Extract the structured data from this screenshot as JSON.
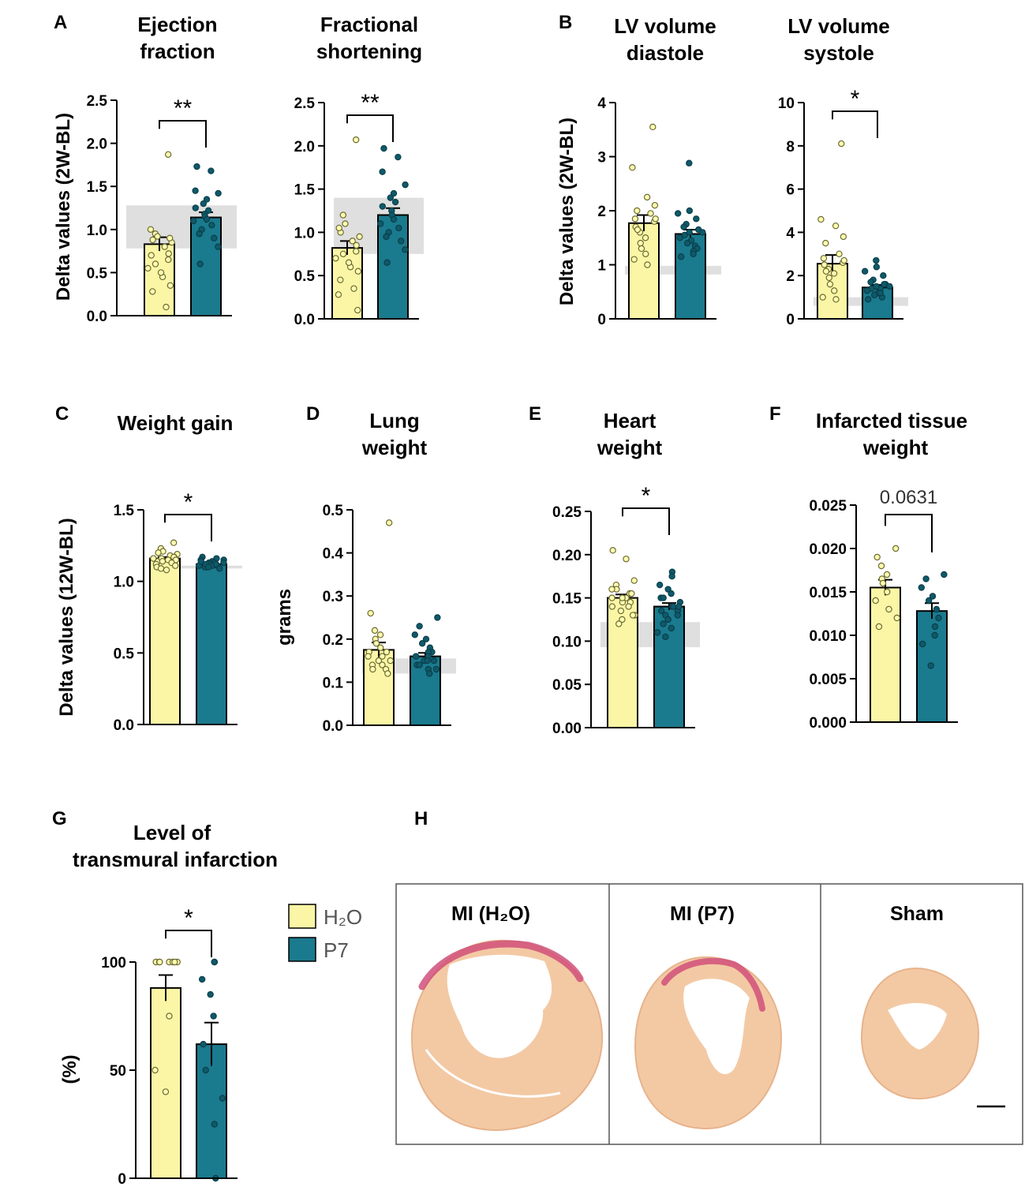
{
  "colors": {
    "h2o": "#fbf6a6",
    "p7": "#1a7a8e",
    "band": "#d9d9d9",
    "h2o_dot": "#ffffb0",
    "p7_dot": "#0e5a6a"
  },
  "legend": [
    {
      "key": "h2o",
      "label": "H₂O"
    },
    {
      "key": "p7",
      "label": "P7"
    }
  ],
  "histology": {
    "label": "H",
    "panels": [
      {
        "title": "MI (H₂O)"
      },
      {
        "title": "MI (P7)"
      },
      {
        "title": "Sham"
      }
    ]
  },
  "chart_data": [
    {
      "id": "ef",
      "type": "bar",
      "panel_label": "A",
      "title": [
        "Ejection",
        "fraction"
      ],
      "ylabel": "Delta values (2W-BL)",
      "ylim": [
        0,
        2.5
      ],
      "ticks": [
        "0.0",
        "0.5",
        "1.0",
        "1.5",
        "2.0",
        "2.5"
      ],
      "categories": [
        "H2O",
        "P7"
      ],
      "values": [
        0.83,
        1.14
      ],
      "sem": [
        0.08,
        0.06
      ],
      "band": [
        0.78,
        1.28
      ],
      "significance": "**",
      "points": [
        [
          1.87,
          0.95,
          0.92,
          0.88,
          0.85,
          0.8,
          0.72,
          0.65,
          0.55,
          0.45,
          0.35,
          0.28,
          0.1,
          1.0,
          0.9,
          0.7,
          0.6,
          0.5
        ],
        [
          1.73,
          1.68,
          1.45,
          1.42,
          1.35,
          1.3,
          1.22,
          1.18,
          1.15,
          1.1,
          1.05,
          1.0,
          0.95,
          0.9,
          0.8,
          0.6,
          1.25,
          1.12
        ]
      ]
    },
    {
      "id": "fs",
      "type": "bar",
      "panel_label": "",
      "title": [
        "Fractional",
        "shortening"
      ],
      "ylabel": "",
      "ylim": [
        0,
        2.5
      ],
      "ticks": [
        "0.0",
        "0.5",
        "1.0",
        "1.5",
        "2.0",
        "2.5"
      ],
      "categories": [
        "H2O",
        "P7"
      ],
      "values": [
        0.82,
        1.2
      ],
      "sem": [
        0.08,
        0.08
      ],
      "band": [
        0.75,
        1.4
      ],
      "significance": "**",
      "points": [
        [
          2.07,
          1.2,
          1.1,
          1.0,
          0.95,
          0.9,
          0.85,
          0.78,
          0.7,
          0.6,
          0.55,
          0.45,
          0.35,
          0.28,
          0.1,
          1.05,
          0.75,
          0.65
        ],
        [
          1.97,
          1.87,
          1.7,
          1.55,
          1.45,
          1.4,
          1.35,
          1.25,
          1.2,
          1.1,
          1.05,
          1.0,
          0.95,
          0.9,
          0.8,
          0.65,
          1.3,
          1.15
        ]
      ]
    },
    {
      "id": "lvd",
      "type": "bar",
      "panel_label": "B",
      "title": [
        "LV volume",
        "diastole"
      ],
      "ylabel": "Delta values (2W-BL)",
      "ylim": [
        0,
        4
      ],
      "ticks": [
        "0",
        "1",
        "2",
        "3",
        "4"
      ],
      "categories": [
        "H2O",
        "P7"
      ],
      "values": [
        1.77,
        1.57
      ],
      "sem": [
        0.15,
        0.08
      ],
      "band": [
        0.82,
        0.98
      ],
      "significance": "",
      "points": [
        [
          3.55,
          2.8,
          2.25,
          2.1,
          2.0,
          1.95,
          1.85,
          1.8,
          1.7,
          1.6,
          1.5,
          1.4,
          1.3,
          1.2,
          1.1,
          1.0,
          1.85,
          1.65
        ],
        [
          2.88,
          2.0,
          1.95,
          1.85,
          1.75,
          1.7,
          1.65,
          1.6,
          1.55,
          1.5,
          1.45,
          1.4,
          1.35,
          1.3,
          1.25,
          1.2,
          1.15,
          1.6
        ]
      ]
    },
    {
      "id": "lvs",
      "type": "bar",
      "panel_label": "",
      "title": [
        "LV volume",
        "systole"
      ],
      "ylabel": "",
      "ylim": [
        0,
        10
      ],
      "ticks": [
        "0",
        "2",
        "4",
        "6",
        "8",
        "10"
      ],
      "categories": [
        "H2O",
        "P7"
      ],
      "values": [
        2.55,
        1.45
      ],
      "sem": [
        0.4,
        0.12
      ],
      "band": [
        0.6,
        1.0
      ],
      "significance": "*",
      "points": [
        [
          8.1,
          4.6,
          4.3,
          3.8,
          3.5,
          3.0,
          2.8,
          2.6,
          2.5,
          2.3,
          2.1,
          1.9,
          1.6,
          1.3,
          1.0,
          0.9,
          2.7,
          2.2
        ],
        [
          2.7,
          2.4,
          2.2,
          2.0,
          1.8,
          1.7,
          1.6,
          1.5,
          1.4,
          1.3,
          1.2,
          1.1,
          1.0,
          1.6,
          1.4,
          1.2,
          0.9,
          1.5
        ]
      ]
    },
    {
      "id": "wg",
      "type": "bar",
      "panel_label": "C",
      "title": [
        "Weight gain"
      ],
      "ylabel": "Delta values (12W-BL)",
      "ylim": [
        0,
        1.5
      ],
      "ticks": [
        "0.0",
        "0.5",
        "1.0",
        "1.5"
      ],
      "categories": [
        "H2O",
        "P7"
      ],
      "values": [
        1.16,
        1.12
      ],
      "sem": [
        0.01,
        0.01
      ],
      "band": [
        1.09,
        1.11
      ],
      "significance": "*",
      "points": [
        [
          1.27,
          1.23,
          1.21,
          1.2,
          1.19,
          1.18,
          1.17,
          1.17,
          1.16,
          1.15,
          1.15,
          1.14,
          1.13,
          1.12,
          1.11,
          1.1,
          1.09,
          1.08,
          1.16,
          1.14
        ],
        [
          1.17,
          1.16,
          1.15,
          1.15,
          1.14,
          1.13,
          1.13,
          1.12,
          1.12,
          1.11,
          1.11,
          1.1,
          1.1,
          1.09,
          1.13,
          1.12,
          1.14,
          1.11,
          1.1,
          1.12
        ]
      ]
    },
    {
      "id": "lung",
      "type": "bar",
      "panel_label": "D",
      "title": [
        "Lung",
        "weight"
      ],
      "ylabel": "grams",
      "ylim": [
        0,
        0.5
      ],
      "ticks": [
        "0.0",
        "0.1",
        "0.2",
        "0.3",
        "0.4",
        "0.5"
      ],
      "categories": [
        "H2O",
        "P7"
      ],
      "values": [
        0.175,
        0.16
      ],
      "sem": [
        0.017,
        0.008
      ],
      "band": [
        0.12,
        0.155
      ],
      "significance": "",
      "points": [
        [
          0.47,
          0.26,
          0.22,
          0.21,
          0.2,
          0.19,
          0.18,
          0.17,
          0.16,
          0.15,
          0.14,
          0.13,
          0.13,
          0.12,
          0.14,
          0.16,
          0.15,
          0.17
        ],
        [
          0.25,
          0.23,
          0.21,
          0.2,
          0.19,
          0.18,
          0.17,
          0.17,
          0.16,
          0.16,
          0.15,
          0.15,
          0.14,
          0.14,
          0.13,
          0.13,
          0.12,
          0.15
        ]
      ]
    },
    {
      "id": "heart",
      "type": "bar",
      "panel_label": "E",
      "title": [
        "Heart",
        "weight"
      ],
      "ylabel": "",
      "ylim": [
        0,
        0.25
      ],
      "ticks": [
        "0.00",
        "0.05",
        "0.10",
        "0.15",
        "0.20",
        "0.25"
      ],
      "categories": [
        "H2O",
        "P7"
      ],
      "values": [
        0.15,
        0.14
      ],
      "sem": [
        0.004,
        0.004
      ],
      "band": [
        0.093,
        0.122
      ],
      "significance": "*",
      "points": [
        [
          0.205,
          0.195,
          0.17,
          0.165,
          0.16,
          0.155,
          0.155,
          0.15,
          0.15,
          0.145,
          0.145,
          0.14,
          0.14,
          0.135,
          0.13,
          0.13,
          0.125,
          0.12,
          0.15,
          0.16
        ],
        [
          0.18,
          0.175,
          0.165,
          0.16,
          0.155,
          0.15,
          0.15,
          0.145,
          0.14,
          0.14,
          0.135,
          0.13,
          0.13,
          0.125,
          0.12,
          0.115,
          0.11,
          0.105,
          0.14,
          0.135
        ]
      ]
    },
    {
      "id": "infw",
      "type": "bar",
      "panel_label": "F",
      "title": [
        "Infarcted tissue",
        "weight"
      ],
      "ylabel": "",
      "ylim": [
        0,
        0.025
      ],
      "ticks": [
        "0.000",
        "0.005",
        "0.010",
        "0.015",
        "0.020",
        "0.025"
      ],
      "categories": [
        "H2O",
        "P7"
      ],
      "values": [
        0.0155,
        0.0128
      ],
      "sem": [
        0.0009,
        0.0009
      ],
      "band": null,
      "significance": "0.0631",
      "points": [
        [
          0.02,
          0.019,
          0.018,
          0.017,
          0.0165,
          0.016,
          0.015,
          0.014,
          0.013,
          0.012,
          0.011
        ],
        [
          0.017,
          0.0165,
          0.0155,
          0.0145,
          0.014,
          0.013,
          0.012,
          0.011,
          0.01,
          0.009,
          0.0065
        ]
      ]
    },
    {
      "id": "trans",
      "type": "bar",
      "panel_label": "G",
      "title": [
        "Level of",
        "transmural infarction"
      ],
      "ylabel": "(%)",
      "ylim": [
        0,
        100
      ],
      "ticks": [
        "0",
        "50",
        "100"
      ],
      "categories": [
        "H2O",
        "P7"
      ],
      "values": [
        88,
        62
      ],
      "sem": [
        6,
        10
      ],
      "band": null,
      "significance": "*",
      "points": [
        [
          100,
          100,
          100,
          100,
          100,
          100,
          100,
          75,
          50,
          40
        ],
        [
          100,
          100,
          92,
          85,
          75,
          62,
          50,
          37,
          25,
          0
        ]
      ]
    }
  ]
}
